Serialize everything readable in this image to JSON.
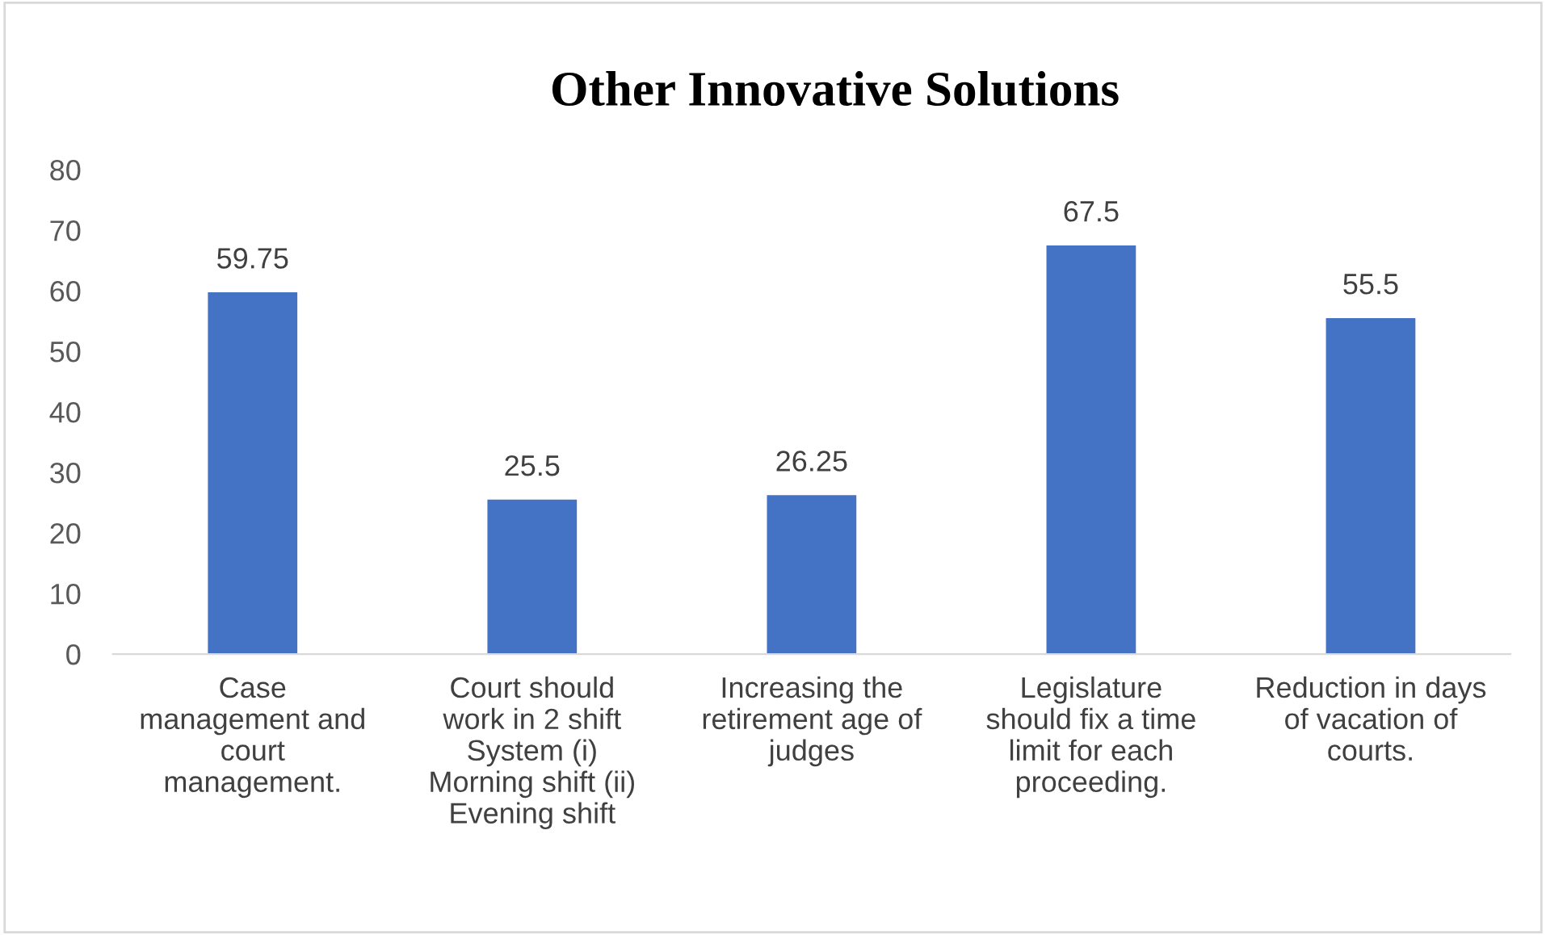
{
  "chart_data": {
    "type": "bar",
    "title": "Other Innovative Solutions",
    "categories": [
      "Case\nmanagement and\ncourt\nmanagement.",
      "Court should\nwork in 2 shift\nSystem (i)\nMorning shift (ii)\nEvening shift",
      "Increasing the\nretirement age of\njudges",
      "Legislature\nshould fix a time\nlimit for each\nproceeding.",
      "Reduction in days\nof vacation of\ncourts."
    ],
    "values": [
      59.75,
      25.5,
      26.25,
      67.5,
      55.5
    ],
    "color": "#4472c4",
    "ylim": [
      0,
      80
    ],
    "yticks": [
      0,
      10,
      20,
      30,
      40,
      50,
      60,
      70,
      80
    ],
    "data_labels": true,
    "grid": false
  }
}
